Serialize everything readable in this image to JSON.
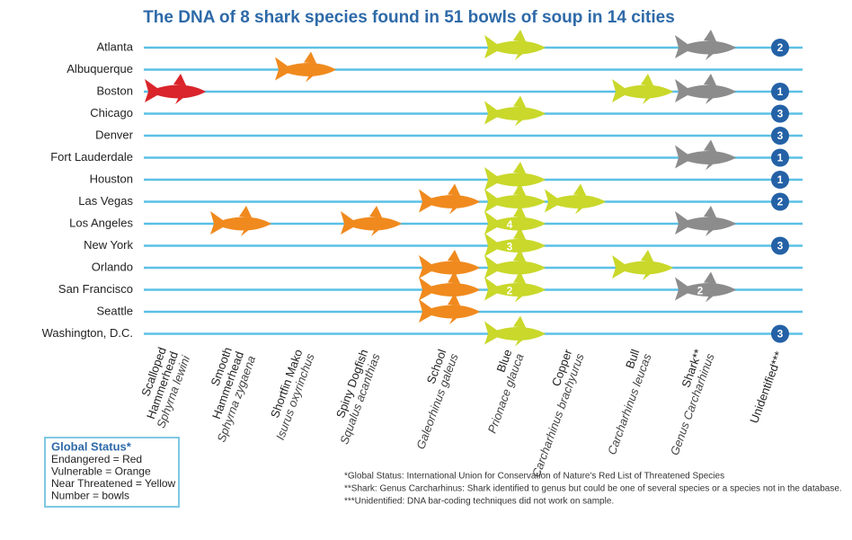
{
  "title": "The DNA of 8 shark species found in 51 bowls of soup in 14 cities",
  "columns": [
    {
      "name_lines": [
        "Scalloped",
        "Hammerhead"
      ],
      "latin": "Sphyrna lewini",
      "color": "#d9252b",
      "kind": "shark"
    },
    {
      "name_lines": [
        "Smooth",
        "Hammerhead"
      ],
      "latin": "Sphyrna zygaena",
      "color": "#f08a1e",
      "kind": "shark"
    },
    {
      "name_lines": [
        "Shortfin Mako"
      ],
      "latin": "Isurus oxyrinchus",
      "color": "#f08a1e",
      "kind": "shark"
    },
    {
      "name_lines": [
        "Spiny Dogfish"
      ],
      "latin": "Squalus acanthias",
      "color": "#f08a1e",
      "kind": "shark"
    },
    {
      "name_lines": [
        "School"
      ],
      "latin": "Galeorhinus galeus",
      "color": "#f08a1e",
      "kind": "shark"
    },
    {
      "name_lines": [
        "Blue"
      ],
      "latin": "Prionace glauca",
      "color": "#c9d82a",
      "kind": "shark"
    },
    {
      "name_lines": [
        "Copper"
      ],
      "latin": "Carcharhinus brachyurus",
      "color": "#c9d82a",
      "kind": "shark"
    },
    {
      "name_lines": [
        "Bull"
      ],
      "latin": "Carcharhinus leucas",
      "color": "#c9d82a",
      "kind": "shark"
    },
    {
      "name_lines": [
        "Shark**"
      ],
      "latin": "Genus Carcharhinus",
      "color": "#8c8c8c",
      "kind": "shark"
    },
    {
      "name_lines": [
        "Unidentified***"
      ],
      "color": "#2461a6",
      "kind": "circle"
    }
  ],
  "rows": [
    {
      "city": "Atlanta",
      "counts": [
        null,
        null,
        null,
        null,
        null,
        1,
        null,
        null,
        1,
        2
      ]
    },
    {
      "city": "Albuquerque",
      "counts": [
        null,
        null,
        1,
        null,
        null,
        null,
        null,
        null,
        null,
        null
      ]
    },
    {
      "city": "Boston",
      "counts": [
        1,
        null,
        null,
        null,
        null,
        null,
        null,
        1,
        1,
        1
      ]
    },
    {
      "city": "Chicago",
      "counts": [
        null,
        null,
        null,
        null,
        null,
        1,
        null,
        null,
        null,
        3
      ]
    },
    {
      "city": "Denver",
      "counts": [
        null,
        null,
        null,
        null,
        null,
        null,
        null,
        null,
        null,
        3
      ]
    },
    {
      "city": "Fort Lauderdale",
      "counts": [
        null,
        null,
        null,
        null,
        null,
        null,
        null,
        null,
        1,
        1
      ]
    },
    {
      "city": "Houston",
      "counts": [
        null,
        null,
        null,
        null,
        null,
        1,
        null,
        null,
        null,
        1
      ]
    },
    {
      "city": "Las Vegas",
      "counts": [
        null,
        null,
        null,
        null,
        1,
        1,
        1,
        null,
        null,
        2
      ]
    },
    {
      "city": "Los Angeles",
      "counts": [
        null,
        1,
        null,
        1,
        null,
        4,
        null,
        null,
        1,
        null
      ]
    },
    {
      "city": "New York",
      "counts": [
        null,
        null,
        null,
        null,
        null,
        3,
        null,
        null,
        null,
        3
      ]
    },
    {
      "city": "Orlando",
      "counts": [
        null,
        null,
        null,
        null,
        1,
        1,
        null,
        1,
        null,
        null
      ]
    },
    {
      "city": "San Francisco",
      "counts": [
        null,
        null,
        null,
        null,
        1,
        2,
        null,
        null,
        2,
        null
      ]
    },
    {
      "city": "Seattle",
      "counts": [
        null,
        null,
        null,
        null,
        1,
        null,
        null,
        null,
        null,
        null
      ]
    },
    {
      "city": "Washington, D.C.",
      "counts": [
        null,
        null,
        null,
        null,
        null,
        1,
        null,
        null,
        null,
        3
      ]
    }
  ],
  "legend": {
    "title": "Global Status*",
    "lines": [
      "Endangered = Red",
      "Vulnerable = Orange",
      "Near Threatened = Yellow",
      "Number = bowls"
    ]
  },
  "notes": [
    "*Global Status: International Union for Conservation of Nature's Red List of Threatened Species",
    "**Shark: Genus Carcharhinus: Shark identified to genus but could be one of several species or a species not in the database.",
    "***Unidentified: DNA bar-coding techniques did not work on sample."
  ]
}
